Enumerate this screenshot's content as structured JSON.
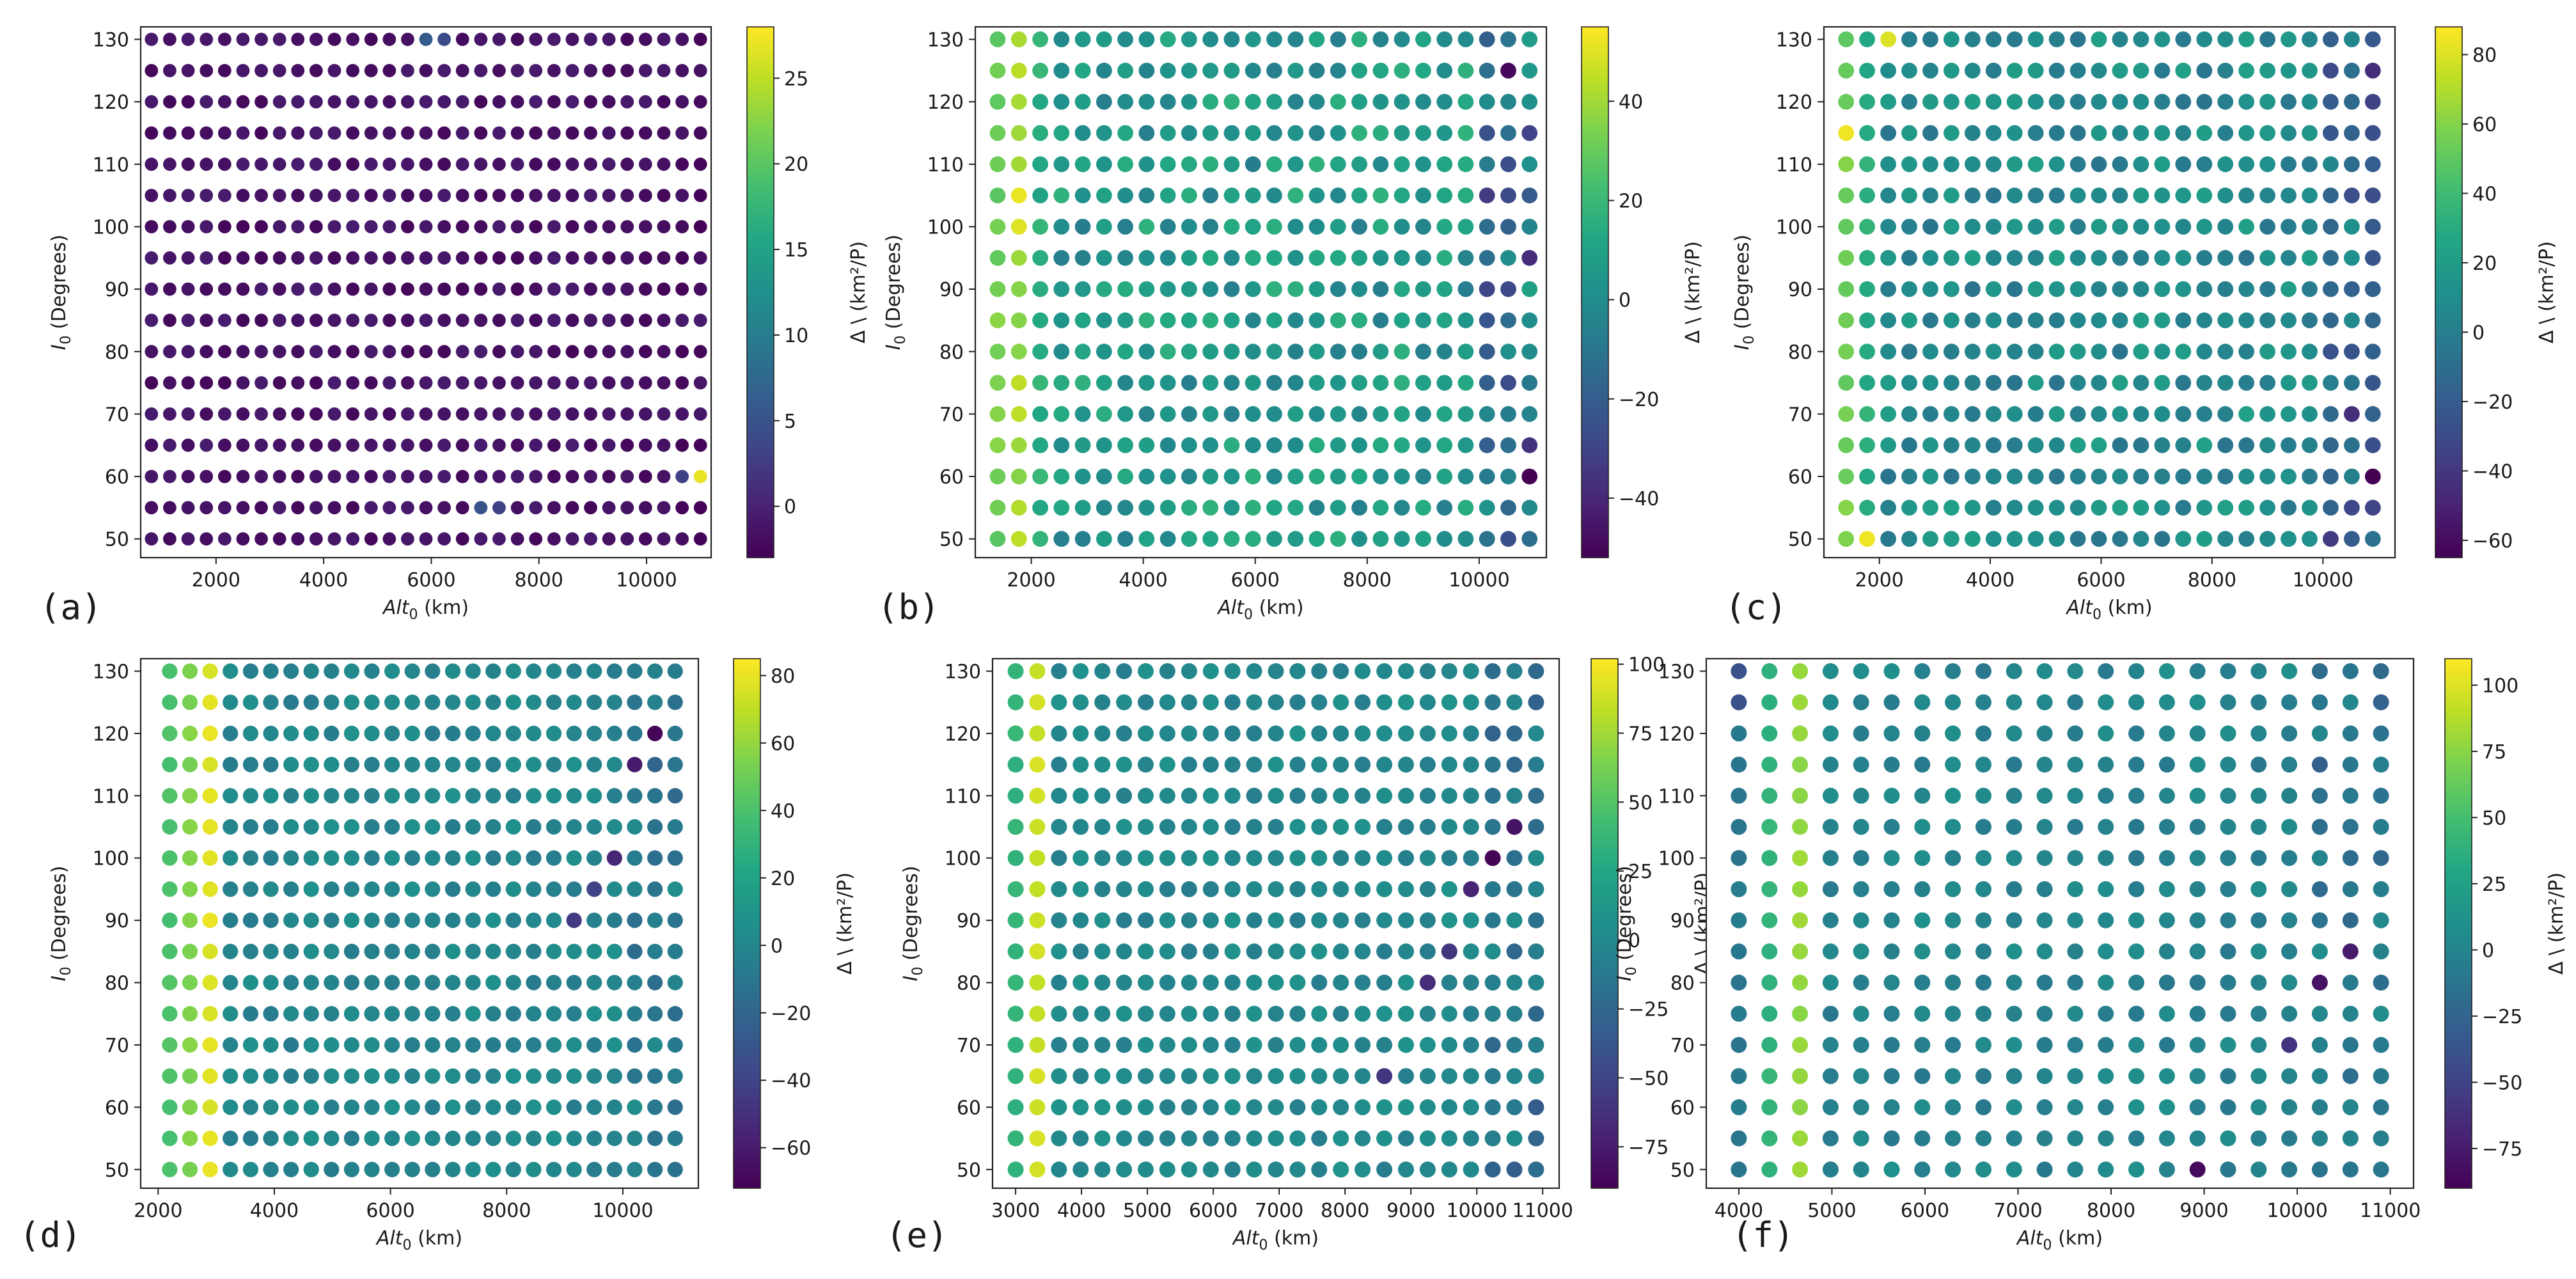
{
  "figure": {
    "panel_labels": [
      "(a)",
      "(b)",
      "(c)",
      "(d)",
      "(e)",
      "(f)"
    ]
  },
  "chart_data": [
    {
      "panel": "(a)",
      "type": "scatter",
      "title": "",
      "xlabel": "Alt₀ (km)",
      "ylabel": "I₀ (Degrees)",
      "colorbar_label": "Δ \\ (km²/P)",
      "x": {
        "start": 800,
        "stop": 11000,
        "count": 31
      },
      "y": [
        50,
        55,
        60,
        65,
        70,
        75,
        80,
        85,
        90,
        95,
        100,
        105,
        110,
        115,
        120,
        125,
        130
      ],
      "xlim": [
        600,
        11200
      ],
      "ylim": [
        47,
        132
      ],
      "xticks": [
        2000,
        4000,
        6000,
        8000,
        10000
      ],
      "yticks": [
        50,
        60,
        70,
        80,
        90,
        100,
        110,
        120,
        130
      ],
      "color_range": [
        -3,
        28
      ],
      "cbar_ticks": [
        0,
        5,
        10,
        15,
        20,
        25
      ],
      "color_pattern": {
        "base": -1.5,
        "noise": 1.0,
        "first_cols": [],
        "right_drop": 0.5
      },
      "highlights": [
        {
          "x": 10600,
          "y": 60,
          "value": 3
        },
        {
          "x": 10800,
          "y": 60,
          "value": 8
        },
        {
          "x": 11000,
          "y": 60,
          "value": 27
        },
        {
          "x": 6000,
          "y": 130,
          "value": 6
        },
        {
          "x": 6300,
          "y": 130,
          "value": 4
        },
        {
          "x": 7000,
          "y": 55,
          "value": 5
        },
        {
          "x": 7400,
          "y": 55,
          "value": 3
        },
        {
          "x": 8600,
          "y": 80,
          "value": -2.5
        }
      ]
    },
    {
      "panel": "(b)",
      "type": "scatter",
      "title": "",
      "xlabel": "Alt₀ (km)",
      "ylabel": "I₀ (Degrees)",
      "colorbar_label": "Δ \\ (km²/P)",
      "x": {
        "start": 1400,
        "stop": 10900,
        "count": 26
      },
      "y": [
        50,
        55,
        60,
        65,
        70,
        75,
        80,
        85,
        90,
        95,
        100,
        105,
        110,
        115,
        120,
        125,
        130
      ],
      "xlim": [
        1000,
        11200
      ],
      "ylim": [
        47,
        132
      ],
      "xticks": [
        2000,
        4000,
        6000,
        8000,
        10000
      ],
      "yticks": [
        50,
        60,
        70,
        80,
        90,
        100,
        110,
        120,
        130
      ],
      "color_range": [
        -52,
        55
      ],
      "cbar_ticks": [
        -40,
        -20,
        0,
        20,
        40
      ],
      "color_pattern": {
        "base": 5,
        "noise": 12,
        "first_cols": [
          32,
          40,
          15
        ],
        "right_drop": 35
      },
      "highlights": [
        {
          "x": 1780,
          "y": 105,
          "value": 52
        },
        {
          "x": 1780,
          "y": 100,
          "value": 50
        },
        {
          "x": 10900,
          "y": 60,
          "value": -52
        },
        {
          "x": 10500,
          "y": 125,
          "value": -50
        }
      ]
    },
    {
      "panel": "(c)",
      "type": "scatter",
      "title": "",
      "xlabel": "Alt₀ (km)",
      "ylabel": "I₀ (Degrees)",
      "colorbar_label": "Δ \\ (km²/P)",
      "x": {
        "start": 1400,
        "stop": 10900,
        "count": 26
      },
      "y": [
        50,
        55,
        60,
        65,
        70,
        75,
        80,
        85,
        90,
        95,
        100,
        105,
        110,
        115,
        120,
        125,
        130
      ],
      "xlim": [
        1000,
        11300
      ],
      "ylim": [
        47,
        132
      ],
      "xticks": [
        2000,
        4000,
        6000,
        8000,
        10000
      ],
      "yticks": [
        50,
        60,
        70,
        80,
        90,
        100,
        110,
        120,
        130
      ],
      "color_range": [
        -65,
        88
      ],
      "cbar_ticks": [
        -60,
        -40,
        -20,
        0,
        20,
        40,
        60,
        80
      ],
      "color_pattern": {
        "base": 8,
        "noise": 14,
        "first_cols": [
          55,
          30
        ],
        "right_drop": 45
      },
      "highlights": [
        {
          "x": 1400,
          "y": 115,
          "value": 85
        },
        {
          "x": 2160,
          "y": 130,
          "value": 80
        },
        {
          "x": 1780,
          "y": 50,
          "value": 85
        },
        {
          "x": 10900,
          "y": 60,
          "value": -65
        }
      ]
    },
    {
      "panel": "(d)",
      "type": "scatter",
      "title": "",
      "xlabel": "Alt₀ (km)",
      "ylabel": "I₀ (Degrees)",
      "colorbar_label": "Δ \\ (km²/P)",
      "x": {
        "start": 2200,
        "stop": 10900,
        "count": 26
      },
      "y": [
        50,
        55,
        60,
        65,
        70,
        75,
        80,
        85,
        90,
        95,
        100,
        105,
        110,
        115,
        120,
        125,
        130
      ],
      "xlim": [
        1700,
        11300
      ],
      "ylim": [
        47,
        132
      ],
      "xticks": [
        2000,
        4000,
        6000,
        8000,
        10000
      ],
      "yticks": [
        50,
        60,
        70,
        80,
        90,
        100,
        110,
        120,
        130
      ],
      "color_range": [
        -72,
        85
      ],
      "cbar_ticks": [
        -60,
        -40,
        -20,
        0,
        20,
        40,
        60,
        80
      ],
      "color_pattern": {
        "base": 0,
        "noise": 7,
        "first_cols": [
          40,
          55,
          78
        ],
        "right_drop": 20
      },
      "highlights": [
        {
          "x": 10560,
          "y": 120,
          "value": -70
        },
        {
          "x": 10220,
          "y": 115,
          "value": -60
        },
        {
          "x": 9880,
          "y": 100,
          "value": -55
        },
        {
          "x": 9540,
          "y": 95,
          "value": -40
        },
        {
          "x": 9200,
          "y": 90,
          "value": -45
        }
      ]
    },
    {
      "panel": "(e)",
      "type": "scatter",
      "title": "",
      "xlabel": "Alt₀ (km)",
      "ylabel": "I₀ (Degrees)",
      "colorbar_label": "Δ \\ (km²/P)",
      "x": {
        "start": 3000,
        "stop": 10900,
        "count": 25
      },
      "y": [
        50,
        55,
        60,
        65,
        70,
        75,
        80,
        85,
        90,
        95,
        100,
        105,
        110,
        115,
        120,
        125,
        130
      ],
      "xlim": [
        2650,
        11250
      ],
      "ylim": [
        47,
        132
      ],
      "xticks": [
        3000,
        4000,
        5000,
        6000,
        7000,
        8000,
        9000,
        10000,
        11000
      ],
      "yticks": [
        50,
        60,
        70,
        80,
        90,
        100,
        110,
        120,
        130
      ],
      "color_range": [
        -90,
        102
      ],
      "cbar_ticks": [
        -75,
        -50,
        -25,
        0,
        25,
        50,
        75,
        100
      ],
      "color_pattern": {
        "base": 0,
        "noise": 9,
        "first_cols": [
          35,
          88
        ],
        "right_drop": 30
      },
      "highlights": [
        {
          "x": 10250,
          "y": 100,
          "value": -88
        },
        {
          "x": 10570,
          "y": 105,
          "value": -80
        },
        {
          "x": 9920,
          "y": 95,
          "value": -70
        },
        {
          "x": 9600,
          "y": 85,
          "value": -60
        },
        {
          "x": 9270,
          "y": 80,
          "value": -65
        },
        {
          "x": 8620,
          "y": 65,
          "value": -60
        }
      ]
    },
    {
      "panel": "(f)",
      "type": "scatter",
      "title": "",
      "xlabel": "Alt₀ (km)",
      "ylabel": "I₀ (Degrees)",
      "colorbar_label": "Δ \\ (km²/P)",
      "x": {
        "start": 4000,
        "stop": 10900,
        "count": 22
      },
      "y": [
        50,
        55,
        60,
        65,
        70,
        75,
        80,
        85,
        90,
        95,
        100,
        105,
        110,
        115,
        120,
        125,
        130
      ],
      "xlim": [
        3650,
        11250
      ],
      "ylim": [
        47,
        132
      ],
      "xticks": [
        4000,
        5000,
        6000,
        7000,
        8000,
        9000,
        10000,
        11000
      ],
      "yticks": [
        50,
        60,
        70,
        80,
        90,
        100,
        110,
        120,
        130
      ],
      "color_range": [
        -90,
        110
      ],
      "cbar_ticks": [
        -75,
        -50,
        -25,
        0,
        25,
        50,
        75,
        100
      ],
      "color_pattern": {
        "base": 0,
        "noise": 10,
        "first_cols": [
          -10,
          40,
          78
        ],
        "right_drop": 25
      },
      "highlights": [
        {
          "x": 4000,
          "y": 130,
          "value": -40
        },
        {
          "x": 4000,
          "y": 125,
          "value": -40
        },
        {
          "x": 8860,
          "y": 50,
          "value": -85
        },
        {
          "x": 10180,
          "y": 80,
          "value": -80
        },
        {
          "x": 9850,
          "y": 70,
          "value": -60
        },
        {
          "x": 10500,
          "y": 85,
          "value": -75
        }
      ]
    }
  ]
}
